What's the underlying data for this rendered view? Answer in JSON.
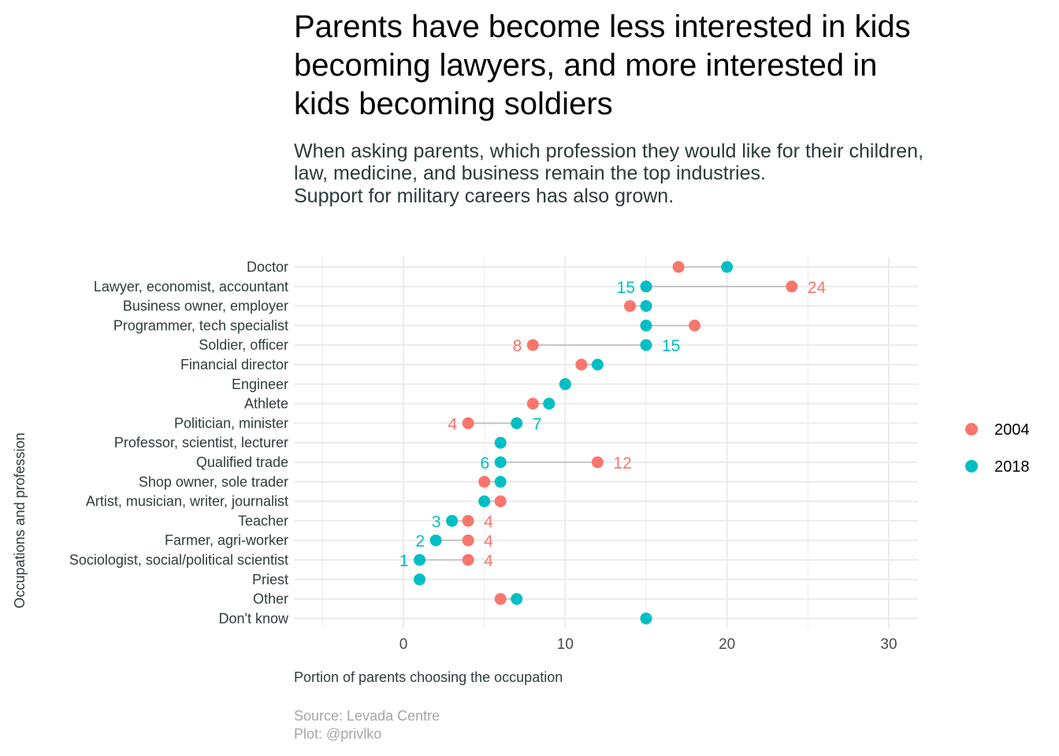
{
  "chart_data": {
    "type": "dumbbell",
    "title_lines": [
      "Parents have become less interested in kids",
      "becoming lawyers, and more interested in",
      "kids becoming soldiers"
    ],
    "subtitle_lines": [
      "When asking parents, which profession they would like for their children,",
      "law, medicine, and business remain the top industries.",
      "Support for military careers has also grown."
    ],
    "xlabel": "Portion of parents choosing the occupation",
    "ylabel": "Occupations and profession",
    "caption_lines": [
      "Source: Levada Centre",
      "Plot: @privlko"
    ],
    "xlim": [
      -5.5,
      31.5
    ],
    "x_ticks": [
      0,
      10,
      20,
      30
    ],
    "grid": true,
    "legend_position": "right",
    "colors": {
      "2004": "#F8766D",
      "2018": "#00BFC4",
      "segment": "#bdbdbd",
      "grid": "#ebebeb"
    },
    "series": [
      {
        "name": "2004",
        "color": "#F8766D"
      },
      {
        "name": "2018",
        "color": "#00BFC4"
      }
    ],
    "categories": [
      "Doctor",
      "Lawyer, economist, accountant",
      "Business owner, employer",
      "Programmer, tech specialist",
      "Soldier, officer",
      "Financial director",
      "Engineer",
      "Athlete",
      "Politician, minister",
      "Professor, scientist, lecturer",
      "Qualified trade",
      "Shop owner, sole trader",
      "Artist, musician, writer, journalist",
      "Teacher",
      "Farmer, agri-worker",
      "Sociologist, social/political scientist",
      "Priest",
      "Other",
      "Don't know"
    ],
    "values_2004": [
      17,
      24,
      14,
      18,
      8,
      11,
      10,
      8,
      4,
      6,
      12,
      5,
      6,
      4,
      4,
      4,
      null,
      6,
      null
    ],
    "values_2018": [
      20,
      15,
      15,
      15,
      15,
      12,
      10,
      9,
      7,
      6,
      6,
      6,
      5,
      3,
      2,
      1,
      1,
      7,
      15
    ],
    "annotations": [
      {
        "category": "Lawyer, economist, accountant",
        "series": "2018",
        "text": "15",
        "side": "left"
      },
      {
        "category": "Lawyer, economist, accountant",
        "series": "2004",
        "text": "24",
        "side": "right"
      },
      {
        "category": "Soldier, officer",
        "series": "2004",
        "text": "8",
        "side": "left"
      },
      {
        "category": "Soldier, officer",
        "series": "2018",
        "text": "15",
        "side": "right"
      },
      {
        "category": "Politician, minister",
        "series": "2004",
        "text": "4",
        "side": "left"
      },
      {
        "category": "Politician, minister",
        "series": "2018",
        "text": "7",
        "side": "right"
      },
      {
        "category": "Qualified trade",
        "series": "2018",
        "text": "6",
        "side": "left"
      },
      {
        "category": "Qualified trade",
        "series": "2004",
        "text": "12",
        "side": "right"
      },
      {
        "category": "Teacher",
        "series": "2018",
        "text": "3",
        "side": "left"
      },
      {
        "category": "Teacher",
        "series": "2004",
        "text": "4",
        "side": "right"
      },
      {
        "category": "Farmer, agri-worker",
        "series": "2018",
        "text": "2",
        "side": "left"
      },
      {
        "category": "Farmer, agri-worker",
        "series": "2004",
        "text": "4",
        "side": "right"
      },
      {
        "category": "Sociologist, social/political scientist",
        "series": "2018",
        "text": "1",
        "side": "left"
      },
      {
        "category": "Sociologist, social/political scientist",
        "series": "2004",
        "text": "4",
        "side": "right"
      }
    ]
  }
}
